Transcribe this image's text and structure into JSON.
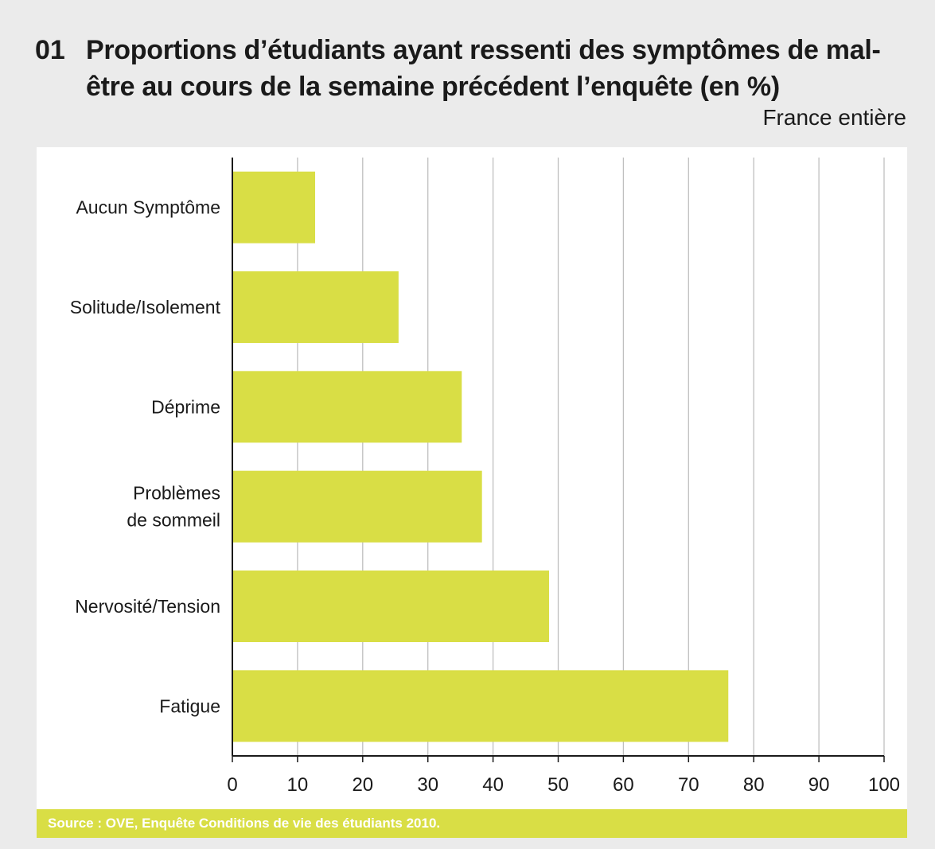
{
  "header": {
    "number": "01",
    "title": "Proportions d’étudiants ayant ressenti des symptômes de mal-être au cours de la semaine précédent l’enquête (en %)",
    "subtitle": "France entière"
  },
  "source": "Source  : OVE, Enquête Conditions de vie des étudiants 2010.",
  "colors": {
    "bar": "#d9de45",
    "grid": "#bfbfbf",
    "axis": "#1a1a1a",
    "background": "#ebebeb",
    "panel": "#ffffff"
  },
  "chart_data": {
    "type": "bar",
    "orientation": "horizontal",
    "categories": [
      [
        "Aucun Symptôme"
      ],
      [
        "Solitude/Isolement"
      ],
      [
        "Déprime"
      ],
      [
        "Problèmes",
        "de sommeil"
      ],
      [
        "Nervosité/Tension"
      ],
      [
        "Fatigue"
      ]
    ],
    "values": [
      12.7,
      25.5,
      35.2,
      38.3,
      48.6,
      76.1
    ],
    "xlim": [
      0,
      100
    ],
    "xticks": [
      "0",
      "10",
      "20",
      "30",
      "40",
      "50",
      "60",
      "70",
      "80",
      "90",
      "100"
    ],
    "grid": true
  }
}
